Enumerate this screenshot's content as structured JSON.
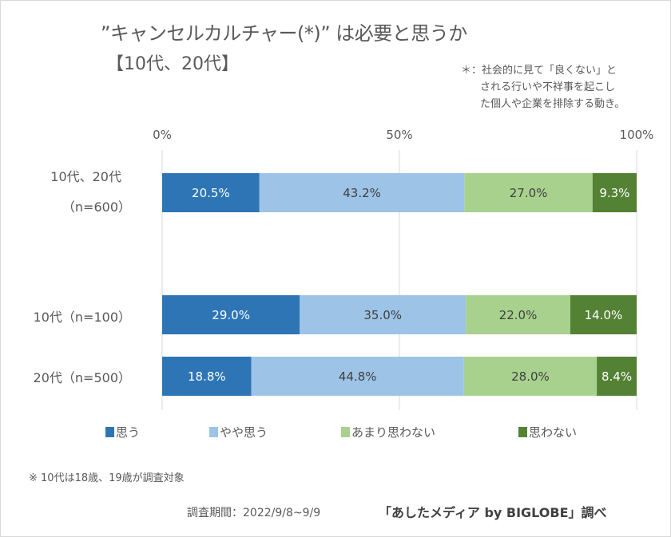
{
  "chart_data": {
    "type": "bar",
    "orientation": "horizontal",
    "stacked": "100%",
    "title": "”キャンセルカルチャー(*)” は必要と思うか",
    "subtitle": "【10代、20代】",
    "annotation": [
      "＊：社会的に見て「良くない」と",
      "される行いや不祥事を起こし",
      "た個人や企業を排除する動き。"
    ],
    "xlabel": "",
    "ylabel": "",
    "xlim": [
      0,
      100
    ],
    "x_ticks": [
      "0%",
      "50%",
      "100%"
    ],
    "grid": true,
    "legend_position": "bottom",
    "categories": [
      {
        "line1": "10代、20代",
        "line2": "（n=600）"
      },
      {
        "line1": "10代（n=100）",
        "line2": ""
      },
      {
        "line1": "20代（n=500）",
        "line2": ""
      }
    ],
    "series": [
      {
        "name": "思う",
        "color": "#2e75b6",
        "label_color": "#ffffff",
        "values": [
          20.5,
          29.0,
          18.8
        ],
        "labels": [
          "20.5%",
          "29.0%",
          "18.8%"
        ]
      },
      {
        "name": "やや思う",
        "color": "#9dc3e6",
        "label_color": "#404040",
        "values": [
          43.2,
          35.0,
          44.8
        ],
        "labels": [
          "43.2%",
          "35.0%",
          "44.8%"
        ]
      },
      {
        "name": "あまり思わない",
        "color": "#a9d18e",
        "label_color": "#404040",
        "values": [
          27.0,
          22.0,
          28.0
        ],
        "labels": [
          "27.0%",
          "22.0%",
          "28.0%"
        ]
      },
      {
        "name": "思わない",
        "color": "#548235",
        "label_color": "#ffffff",
        "values": [
          9.3,
          14.0,
          8.4
        ],
        "labels": [
          "9.3%",
          "14.0%",
          "8.4%"
        ]
      }
    ]
  },
  "footnote": "※ 10代は18歳、19歳が調査対象",
  "survey_period": "調査期間：2022/9/8~9/9",
  "source": "「あしたメディア by BIGLOBE」調べ"
}
